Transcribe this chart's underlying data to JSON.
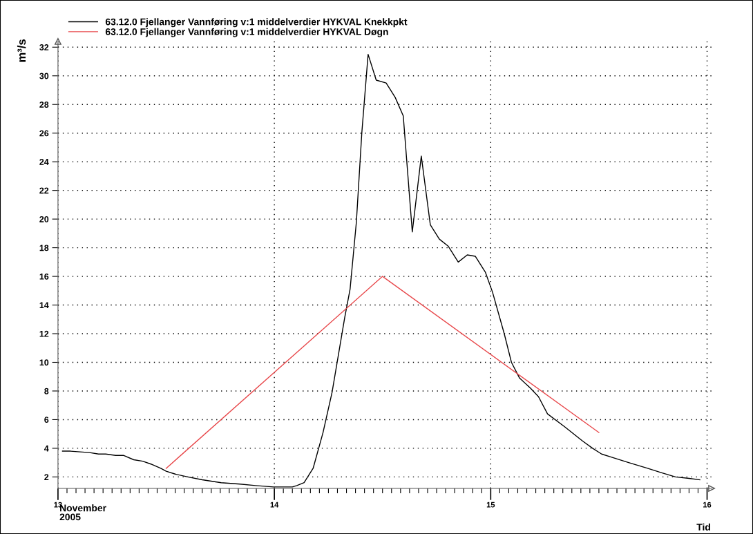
{
  "chart_data": {
    "type": "line",
    "ylabel": "m³/s",
    "xlabel": "Tid",
    "annotations": [
      "November\n2005"
    ],
    "series": [
      {
        "name": "63.12.0 Fjellanger Vannføring v:1 middelverdier HYKVAL Knekkpkt",
        "color": "#000000",
        "x": [
          "2005-11-13T00:30",
          "2005-11-13T01:24",
          "2005-11-13T03:30",
          "2005-11-13T04:30",
          "2005-11-13T05:18",
          "2005-11-13T06:24",
          "2005-11-13T07:18",
          "2005-11-13T08:24",
          "2005-11-13T09:24",
          "2005-11-13T10:18",
          "2005-11-13T11:24",
          "2005-11-13T12:00",
          "2005-11-13T13:00",
          "2005-11-13T14:24",
          "2005-11-13T16:00",
          "2005-11-13T18:06",
          "2005-11-13T20:12",
          "2005-11-13T21:54",
          "2005-11-13T23:54",
          "2005-11-14T02:00",
          "2005-11-14T02:30",
          "2005-11-14T03:18",
          "2005-11-14T04:18",
          "2005-11-14T05:24",
          "2005-11-14T06:24",
          "2005-11-14T07:48",
          "2005-11-14T08:24",
          "2005-11-14T09:06",
          "2005-11-14T09:42",
          "2005-11-14T10:24",
          "2005-11-14T11:18",
          "2005-11-14T12:24",
          "2005-11-14T13:24",
          "2005-11-14T14:18",
          "2005-11-14T15:18",
          "2005-11-14T16:18",
          "2005-11-14T17:18",
          "2005-11-14T18:18",
          "2005-11-14T19:18",
          "2005-11-14T20:24",
          "2005-11-14T21:24",
          "2005-11-14T22:18",
          "2005-11-14T23:24",
          "2005-11-15T00:12",
          "2005-11-15T01:30",
          "2005-11-15T02:18",
          "2005-11-15T03:12",
          "2005-11-15T04:24",
          "2005-11-15T05:18",
          "2005-11-15T06:18",
          "2005-11-15T08:12",
          "2005-11-15T10:12",
          "2005-11-15T11:18",
          "2005-11-15T12:18",
          "2005-11-15T13:18",
          "2005-11-15T15:18",
          "2005-11-15T17:24",
          "2005-11-15T18:54",
          "2005-11-15T20:30",
          "2005-11-15T22:00",
          "2005-11-15T23:12"
        ],
        "values": [
          3.8,
          3.8,
          3.7,
          3.6,
          3.6,
          3.5,
          3.5,
          3.2,
          3.1,
          2.9,
          2.6,
          2.4,
          2.2,
          2.0,
          1.8,
          1.6,
          1.5,
          1.4,
          1.3,
          1.3,
          1.4,
          1.6,
          2.6,
          5.1,
          7.9,
          13.1,
          15.1,
          19.8,
          26.0,
          31.5,
          29.7,
          29.5,
          28.5,
          27.2,
          19.1,
          24.4,
          19.6,
          18.6,
          18.1,
          17.0,
          17.5,
          17.4,
          16.3,
          14.9,
          12.0,
          10.0,
          8.9,
          8.2,
          7.6,
          6.4,
          5.5,
          4.5,
          4.0,
          3.6,
          3.4,
          3.0,
          2.6,
          2.3,
          2.0,
          1.9,
          1.8
        ]
      },
      {
        "name": "63.12.0 Fjellanger Vannføring v:1 middelverdier HYKVAL Døgn",
        "color": "#e8484b",
        "x": [
          "2005-11-13T12:00",
          "2005-11-14T12:00",
          "2005-11-15T12:00"
        ],
        "values": [
          2.6,
          16.0,
          5.1
        ]
      }
    ],
    "xlim": [
      "2005-11-13T00:00",
      "2005-11-16T00:30"
    ],
    "xticks": [
      {
        "value": "2005-11-13",
        "label": "13"
      },
      {
        "value": "2005-11-14",
        "label": "14"
      },
      {
        "value": "2005-11-15",
        "label": "15"
      },
      {
        "value": "2005-11-16",
        "label": "16"
      }
    ],
    "ylim": [
      1.2,
      32.4
    ],
    "yticks": [
      2,
      4,
      6,
      8,
      10,
      12,
      14,
      16,
      18,
      20,
      22,
      24,
      26,
      28,
      30,
      32
    ],
    "grid": true,
    "legend": "top left",
    "line_style": "solid",
    "marker": "none"
  }
}
